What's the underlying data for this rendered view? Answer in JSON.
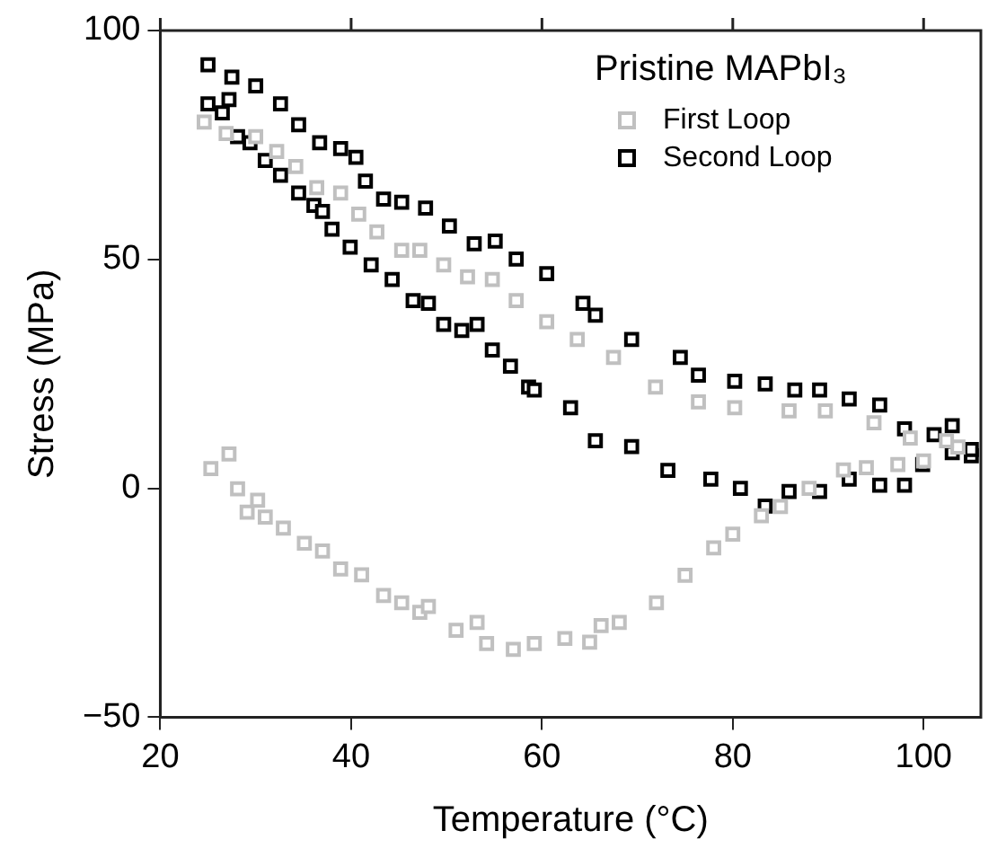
{
  "chart_data": {
    "type": "scatter",
    "xlabel": "Temperature (°C)",
    "ylabel": "Stress (MPa)",
    "legend_title": "Pristine MAPbI₃",
    "legend": "top right",
    "marker": "square",
    "grid": false,
    "xlim": [
      20,
      106
    ],
    "xticks": [
      20,
      40,
      60,
      80,
      100
    ],
    "ylim": [
      -50,
      100
    ],
    "yticks": [
      -50,
      0,
      50,
      100
    ],
    "series": [
      {
        "name": "First Loop",
        "color": "#c0c0c0",
        "x": [
          25.3,
          27.2,
          28.1,
          29.1,
          30.2,
          31.0,
          32.9,
          35.1,
          37.0,
          38.9,
          41.1,
          43.4,
          45.3,
          47.2,
          48.1,
          51.0,
          53.2,
          54.2,
          57.0,
          59.2,
          62.4,
          65.0,
          66.2,
          68.1,
          72,
          75,
          78,
          80,
          83,
          85,
          88,
          91.6,
          94,
          97.3,
          100,
          103.6,
          102.4,
          98.6,
          94.8,
          89.7,
          85.9,
          80.2,
          76.4,
          71.9,
          67.5,
          63.7,
          60.5,
          57.3,
          54.8,
          52.2,
          49.7,
          47.2,
          45.3,
          42.7,
          40.8,
          38.9,
          36.4,
          34.2,
          32.2,
          30.0,
          26.9,
          24.6
        ],
        "values": [
          4.3,
          7.5,
          -0.1,
          -5.2,
          -2.6,
          -6.3,
          -8.7,
          -12,
          -13.7,
          -17.6,
          -18.9,
          -23.4,
          -25,
          -27.1,
          -25.8,
          -31,
          -29.3,
          -33.9,
          -35.2,
          -33.9,
          -32.8,
          -33.6,
          -30,
          -29.3,
          -25,
          -19,
          -13,
          -10,
          -6,
          -4,
          0,
          4,
          4.5,
          5.2,
          6,
          9,
          10.4,
          11,
          14.3,
          16.9,
          16.9,
          17.6,
          18.9,
          22.1,
          28.6,
          32.5,
          36.4,
          41,
          45.6,
          46.2,
          48.8,
          52,
          52,
          56,
          59.9,
          64.5,
          65.7,
          70.3,
          73.6,
          76.8,
          77.5,
          80
        ]
      },
      {
        "name": "Second Loop",
        "color": "#000000",
        "x": [
          25,
          26.5,
          27.2,
          28.1,
          29.4,
          31,
          32.6,
          34.5,
          36.1,
          37,
          38,
          39.9,
          42.1,
          44.3,
          46.5,
          48.1,
          49.7,
          51.6,
          53.2,
          54.8,
          56.7,
          58.6,
          59.2,
          63,
          65.6,
          69.4,
          73.2,
          77.7,
          80.8,
          83.4,
          85.9,
          89.1,
          92.2,
          95.4,
          98,
          99.9,
          103,
          105,
          105,
          103,
          101.1,
          98,
          95.4,
          92.2,
          89.1,
          86.5,
          83.4,
          80.2,
          76.4,
          74.5,
          69.4,
          65.6,
          64.3,
          60.5,
          57.3,
          55.1,
          52.9,
          50.3,
          47.8,
          45.3,
          43.4,
          41.5,
          40.5,
          38.9,
          36.7,
          34.5,
          32.6,
          30,
          27.5,
          25
        ],
        "values": [
          84,
          82,
          84.9,
          76.8,
          75.5,
          71.6,
          68.4,
          64.5,
          61.8,
          60.5,
          56.6,
          52.7,
          48.8,
          45.6,
          41,
          40.4,
          35.8,
          34.5,
          35.8,
          30.2,
          26.7,
          22.1,
          21.5,
          17.6,
          10.4,
          9.1,
          3.9,
          2,
          0,
          -3.9,
          -0.7,
          -0.7,
          2,
          0.7,
          0.7,
          5.2,
          7.8,
          7.1,
          8.5,
          13.7,
          11.7,
          13,
          18.2,
          19.5,
          21.5,
          21.5,
          22.8,
          23.4,
          24.7,
          28.6,
          32.5,
          37.8,
          40.4,
          46.9,
          50.1,
          54,
          53.4,
          57.3,
          61.2,
          62.5,
          63.2,
          67.1,
          72.3,
          74.2,
          75.5,
          79.4,
          84,
          87.9,
          89.8,
          92.5
        ]
      }
    ]
  }
}
